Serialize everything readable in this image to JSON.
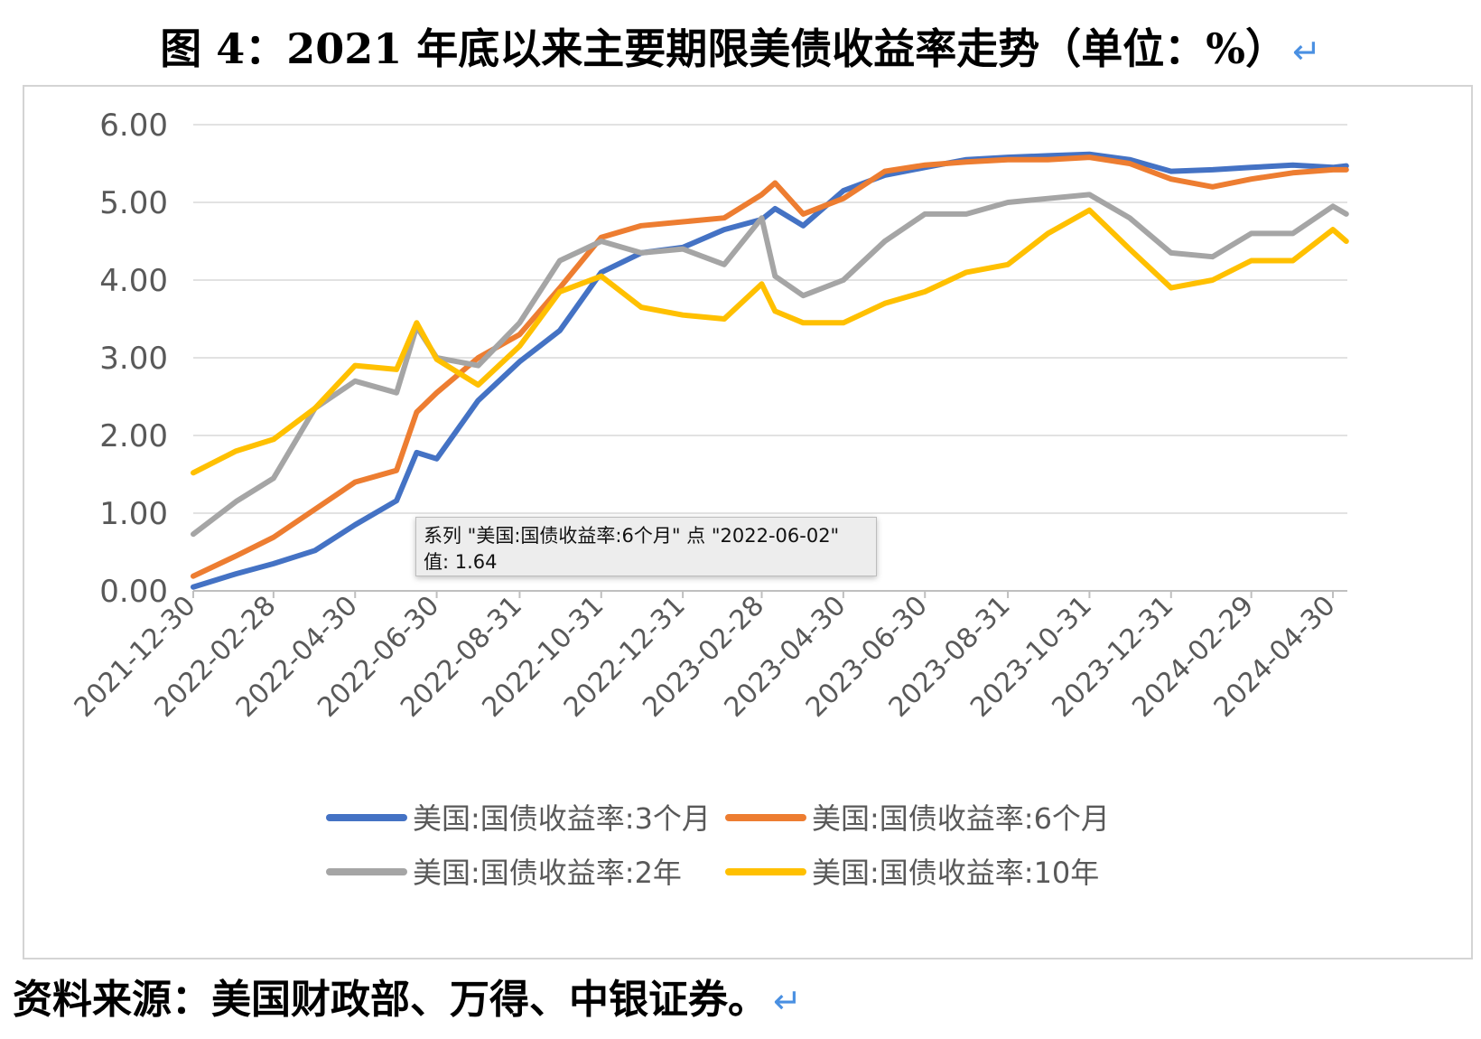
{
  "title": "图 4：2021 年底以来主要期限美债收益率走势（单位：%）",
  "return_mark": "↵",
  "source": "资料来源：美国财政部、万得、中银证券。",
  "tooltip": {
    "line1": "系列 \"美国:国债收益率:6个月\" 点 \"2022-06-02\"",
    "line2": "值: 1.64"
  },
  "chart_data": {
    "type": "line",
    "title": "",
    "xlabel": "",
    "ylabel": "",
    "ylim": [
      0,
      6
    ],
    "yticks": [
      "0.00",
      "1.00",
      "2.00",
      "3.00",
      "4.00",
      "5.00",
      "6.00"
    ],
    "grid": "horizontal",
    "legend_position": "bottom",
    "x_tick_labels": [
      "2021-12-30",
      "2022-02-28",
      "2022-04-30",
      "2022-06-30",
      "2022-08-31",
      "2022-10-31",
      "2022-12-31",
      "2023-02-28",
      "2023-04-30",
      "2023-06-30",
      "2023-08-31",
      "2023-10-31",
      "2023-12-31",
      "2024-02-29",
      "2024-04-30"
    ],
    "x": [
      "2021-12-30",
      "2022-01-31",
      "2022-02-28",
      "2022-03-31",
      "2022-04-30",
      "2022-05-31",
      "2022-06-15",
      "2022-06-30",
      "2022-07-31",
      "2022-08-31",
      "2022-09-30",
      "2022-10-31",
      "2022-11-30",
      "2022-12-31",
      "2023-01-31",
      "2023-02-28",
      "2023-03-10",
      "2023-03-31",
      "2023-04-30",
      "2023-05-31",
      "2023-06-30",
      "2023-07-31",
      "2023-08-31",
      "2023-09-30",
      "2023-10-31",
      "2023-11-30",
      "2023-12-31",
      "2024-01-31",
      "2024-02-29",
      "2024-03-31",
      "2024-04-30",
      "2024-05-10"
    ],
    "series": [
      {
        "name": "美国:国债收益率:3个月",
        "color": "#4472c4",
        "values": [
          0.05,
          0.22,
          0.35,
          0.52,
          0.85,
          1.16,
          1.78,
          1.7,
          2.45,
          2.95,
          3.35,
          4.1,
          4.35,
          4.42,
          4.65,
          4.78,
          4.92,
          4.7,
          5.15,
          5.35,
          5.45,
          5.55,
          5.58,
          5.6,
          5.62,
          5.55,
          5.4,
          5.42,
          5.45,
          5.48,
          5.45,
          5.47
        ]
      },
      {
        "name": "美国:国债收益率:6个月",
        "color": "#ed7d31",
        "values": [
          0.19,
          0.45,
          0.69,
          1.05,
          1.4,
          1.55,
          2.3,
          2.55,
          3.0,
          3.3,
          3.9,
          4.55,
          4.7,
          4.75,
          4.8,
          5.1,
          5.25,
          4.85,
          5.05,
          5.4,
          5.48,
          5.52,
          5.55,
          5.55,
          5.58,
          5.5,
          5.3,
          5.2,
          5.3,
          5.38,
          5.42,
          5.42
        ]
      },
      {
        "name": "美国:国债收益率:2年",
        "color": "#a5a5a5",
        "values": [
          0.73,
          1.15,
          1.45,
          2.35,
          2.7,
          2.55,
          3.4,
          3.0,
          2.9,
          3.45,
          4.25,
          4.5,
          4.35,
          4.4,
          4.2,
          4.8,
          4.05,
          3.8,
          4.0,
          4.5,
          4.85,
          4.85,
          5.0,
          5.05,
          5.1,
          4.8,
          4.35,
          4.3,
          4.6,
          4.6,
          4.95,
          4.85
        ]
      },
      {
        "name": "美国:国债收益率:10年",
        "color": "#ffc000",
        "values": [
          1.52,
          1.8,
          1.95,
          2.35,
          2.9,
          2.85,
          3.45,
          2.98,
          2.65,
          3.15,
          3.85,
          4.05,
          3.65,
          3.55,
          3.5,
          3.95,
          3.6,
          3.45,
          3.45,
          3.7,
          3.85,
          4.1,
          4.2,
          4.6,
          4.9,
          4.4,
          3.9,
          4.0,
          4.25,
          4.25,
          4.65,
          4.5
        ]
      }
    ]
  }
}
